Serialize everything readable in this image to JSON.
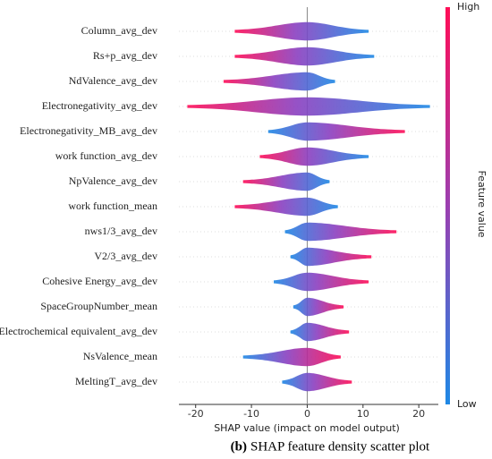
{
  "chart_data": {
    "type": "beeswarm",
    "xlabel": "SHAP value (impact on model output)",
    "caption_label": "(b)",
    "caption": "SHAP feature density scatter plot",
    "colorbar": {
      "high": "High",
      "low": "Low",
      "label": "Feature value",
      "colors": [
        "#ff0d57",
        "#1e88e5"
      ]
    },
    "xlim": [
      -23,
      23.5
    ],
    "xticks": [
      -20,
      -10,
      0,
      10,
      20
    ],
    "features": [
      {
        "name": "Column_avg_dev",
        "min": -13,
        "max": 11,
        "colors": [
          "#ff0d57",
          "#1e88e5"
        ]
      },
      {
        "name": "Rs+p_avg_dev",
        "min": -13,
        "max": 12,
        "colors": [
          "#ff0d57",
          "#1e88e5"
        ]
      },
      {
        "name": "NdValence_avg_dev",
        "min": -15,
        "max": 5,
        "colors": [
          "#ff0d57",
          "#1e88e5"
        ]
      },
      {
        "name": "Electronegativity_avg_dev",
        "min": -21.5,
        "max": 22,
        "colors": [
          "#ff0d57",
          "#1e88e5"
        ]
      },
      {
        "name": "Electronegativity_MB_avg_dev",
        "min": -7,
        "max": 17.5,
        "colors": [
          "#1e88e5",
          "#ff0d57"
        ]
      },
      {
        "name": "work function_avg_dev",
        "min": -8.5,
        "max": 11,
        "colors": [
          "#ff0d57",
          "#1e88e5"
        ]
      },
      {
        "name": "NpValence_avg_dev",
        "min": -11.5,
        "max": 4,
        "colors": [
          "#ff0d57",
          "#1e88e5"
        ]
      },
      {
        "name": "work function_mean",
        "min": -13,
        "max": 5.5,
        "colors": [
          "#ff0d57",
          "#1e88e5"
        ]
      },
      {
        "name": "nws1/3_avg_dev",
        "min": -4,
        "max": 16,
        "colors": [
          "#1e88e5",
          "#ff0d57"
        ]
      },
      {
        "name": "V2/3_avg_dev",
        "min": -3,
        "max": 11.5,
        "colors": [
          "#1e88e5",
          "#ff0d57"
        ]
      },
      {
        "name": "Cohesive Energy_avg_dev",
        "min": -6,
        "max": 11,
        "colors": [
          "#1e88e5",
          "#ff0d57"
        ]
      },
      {
        "name": "SpaceGroupNumber_mean",
        "min": -2.5,
        "max": 6.5,
        "colors": [
          "#1e88e5",
          "#ff0d57"
        ]
      },
      {
        "name": "Electrochemical equivalent_avg_dev",
        "min": -3,
        "max": 7.5,
        "colors": [
          "#1e88e5",
          "#ff0d57"
        ]
      },
      {
        "name": "NsValence_mean",
        "min": -11.5,
        "max": 6,
        "colors": [
          "#1e88e5",
          "#ff0d57"
        ]
      },
      {
        "name": "MeltingT_avg_dev",
        "min": -4.5,
        "max": 8,
        "colors": [
          "#1e88e5",
          "#ff0d57"
        ]
      }
    ]
  }
}
